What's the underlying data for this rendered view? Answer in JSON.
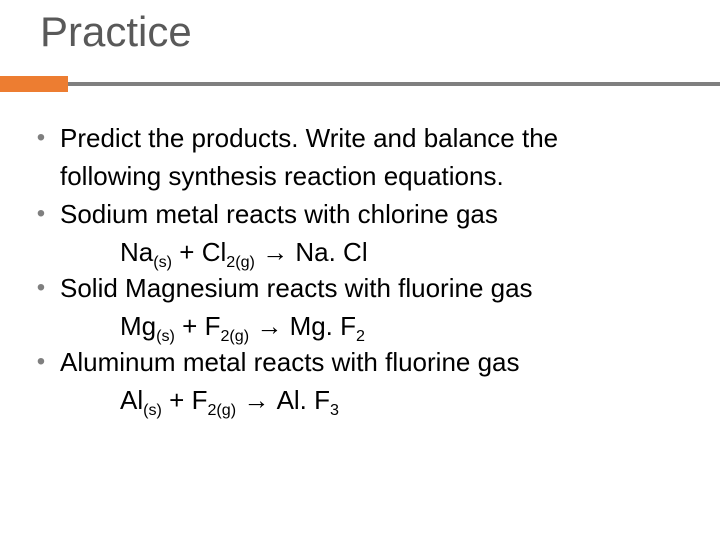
{
  "title": "Practice",
  "accent_color": "#ed7d31",
  "rule_color": "#7f7f7f",
  "items": {
    "b0": {
      "line1": "Predict the products.  Write and balance the",
      "line2": "following synthesis reaction equations."
    },
    "b1": {
      "text": "Sodium metal reacts with chlorine gas"
    },
    "eq1": {
      "r1": "Na",
      "r1sub": "(s)",
      "plus": " + ",
      "r2": "Cl",
      "r2sub": "2(g)",
      "arrow": " →   ",
      "p": "Na. Cl"
    },
    "b2": {
      "text": "Solid Magnesium reacts with fluorine gas"
    },
    "eq2": {
      "r1": "Mg",
      "r1sub": "(s)",
      "plus": " + ",
      "r2": "F",
      "r2sub": "2(g)",
      "arrow": " →  ",
      "p1": "Mg. F",
      "p1sub": "2"
    },
    "b3": {
      "text": "Aluminum metal reacts with fluorine gas"
    },
    "eq3": {
      "r1": "Al",
      "r1sub": "(s)",
      "plus": " +   ",
      "r2": "F",
      "r2sub": "2(g)",
      "arrow": " →  ",
      "p1": "Al. F",
      "p1sub": "3"
    }
  },
  "bullet_char": "•"
}
